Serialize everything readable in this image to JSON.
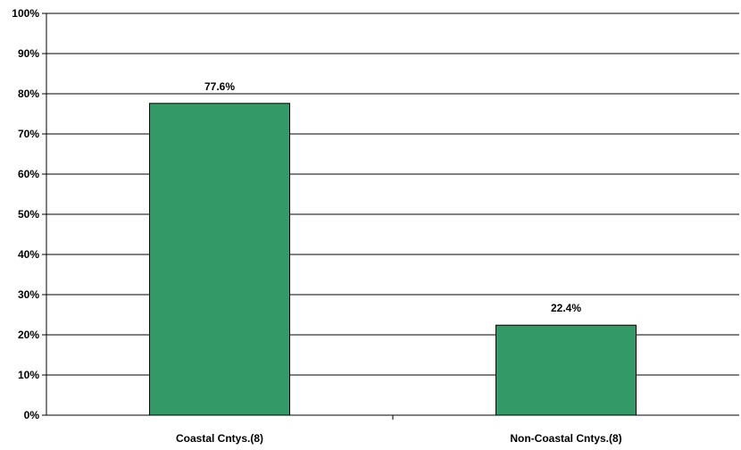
{
  "chart_data": {
    "type": "bar",
    "title": "",
    "xlabel": "",
    "ylabel": "",
    "categories": [
      "Coastal Cntys.(8)",
      "Non-Coastal Cntys.(8)"
    ],
    "values": [
      77.6,
      22.4
    ],
    "data_labels": [
      "77.6%",
      "22.4%"
    ],
    "ylim": [
      0,
      100
    ],
    "y_ticks": [
      0,
      10,
      20,
      30,
      40,
      50,
      60,
      70,
      80,
      90,
      100
    ],
    "y_tick_labels": [
      "0%",
      "10%",
      "20%",
      "30%",
      "40%",
      "50%",
      "60%",
      "70%",
      "80%",
      "90%",
      "100%"
    ],
    "grid": true,
    "legend": "none",
    "colors": {
      "bar_fill": "#339966",
      "bar_stroke": "#000000",
      "grid": "#000000",
      "axis": "#000000",
      "background": "#ffffff"
    }
  }
}
